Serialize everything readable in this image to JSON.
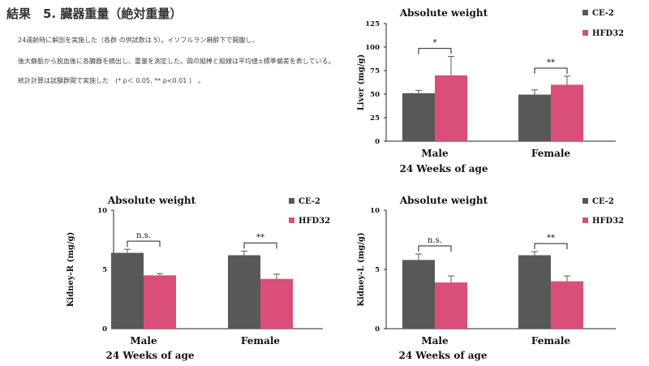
{
  "page": {
    "heading": "結果　5. 臓器重量（絶対重量）",
    "paragraph": [
      "24週齢時に解剖を実施した（各群 の供試数は 5）。イソフルラン麻酔下で開腹し、",
      "後大静脈から脱血後に各臓器を摘出し、重量を測定した。図の縦棒と縦線は平均値±標準偏差を表している。",
      "統計計算は試験群間で実施した　(*  p＜ 0.05, ** p<0.01 )　。"
    ]
  },
  "colors": {
    "CE-2": "#58585a",
    "HFD32": "#d94f78",
    "error_bar": "#58585a"
  },
  "chart_data": [
    {
      "type": "bar",
      "title": "Absolute weight",
      "xlabel": "24 Weeks of age",
      "ylabel": "Liver (mg/g)",
      "categories": [
        "Male",
        "Female"
      ],
      "ylim": [
        0,
        125
      ],
      "yticks": [
        "0",
        "25",
        "50",
        "75",
        "100",
        "125"
      ],
      "series": [
        {
          "name": "CE-2",
          "values": [
            51,
            49.5
          ],
          "errors": [
            3,
            5
          ]
        },
        {
          "name": "HFD32",
          "values": [
            70,
            60
          ],
          "errors": [
            20,
            9
          ]
        }
      ],
      "significance": [
        "*",
        "**"
      ],
      "legend": "top-right"
    },
    {
      "type": "bar",
      "title": "Absolute weight",
      "xlabel": "24 Weeks of age",
      "ylabel": "Kidney-R (mg/g)",
      "categories": [
        "Male",
        "Female"
      ],
      "ylim": [
        0,
        10
      ],
      "yticks": [
        "0",
        "5",
        "10"
      ],
      "series": [
        {
          "name": "CE-2",
          "values": [
            6.4,
            6.2
          ],
          "errors": [
            0.3,
            0.35
          ]
        },
        {
          "name": "HFD32",
          "values": [
            4.5,
            4.2
          ],
          "errors": [
            0.15,
            0.4
          ]
        }
      ],
      "significance": [
        "n.s.",
        "**"
      ],
      "legend": "top-right"
    },
    {
      "type": "bar",
      "title": "Absolute weight",
      "xlabel": "24 Weeks of age",
      "ylabel": "Kidney-L (mg/g)",
      "categories": [
        "Male",
        "Female"
      ],
      "ylim": [
        0,
        10
      ],
      "yticks": [
        "0",
        "5",
        "10"
      ],
      "series": [
        {
          "name": "CE-2",
          "values": [
            5.8,
            6.2
          ],
          "errors": [
            0.5,
            0.3
          ]
        },
        {
          "name": "HFD32",
          "values": [
            3.9,
            4.0
          ],
          "errors": [
            0.55,
            0.45
          ]
        }
      ],
      "significance": [
        "n.s.",
        "**"
      ],
      "legend": "top-right"
    }
  ]
}
